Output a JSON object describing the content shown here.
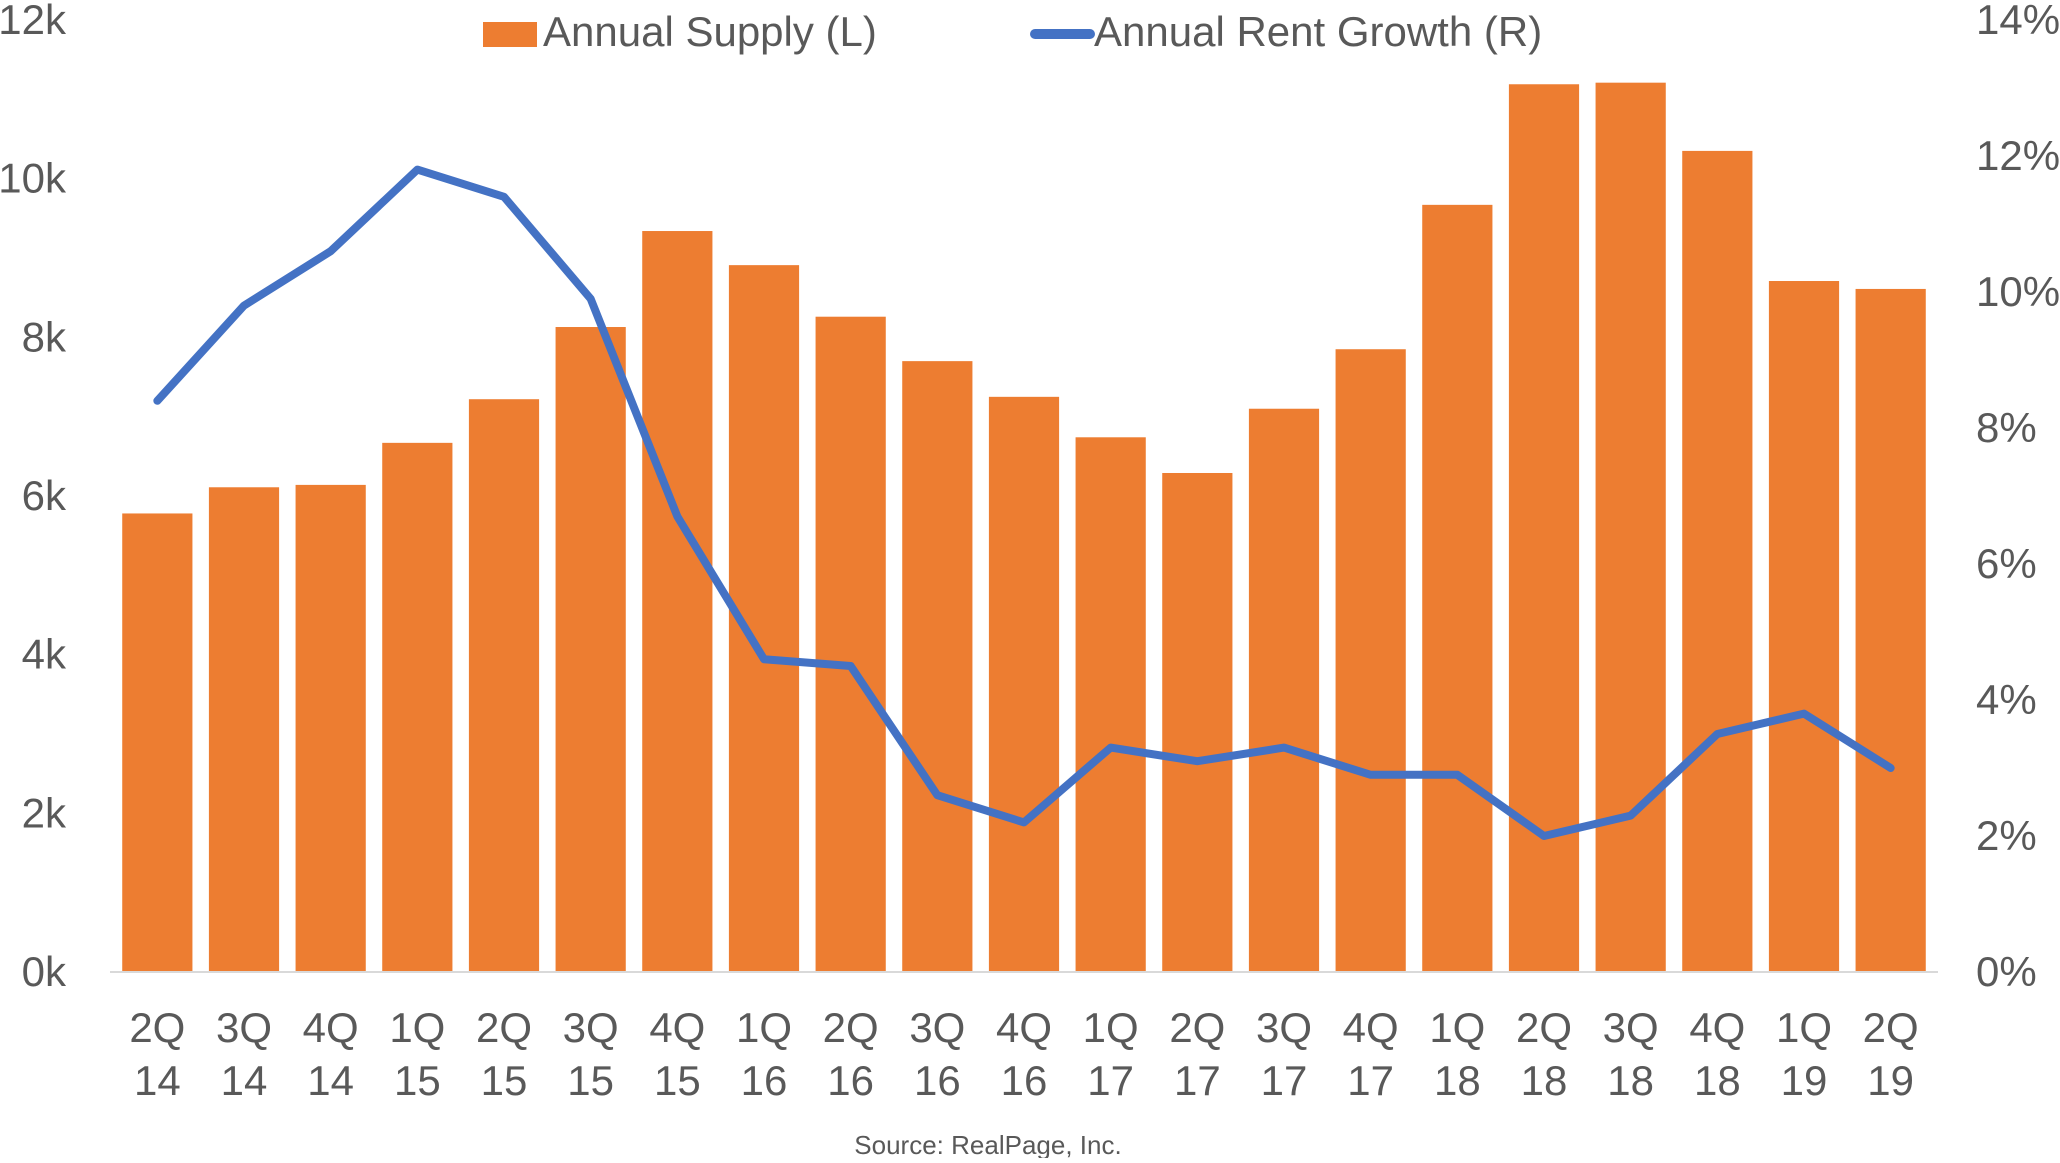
{
  "chart_data": {
    "type": "bar+line",
    "categories": [
      "2Q 14",
      "3Q 14",
      "4Q 14",
      "1Q 15",
      "2Q 15",
      "3Q 15",
      "4Q 15",
      "1Q 16",
      "2Q 16",
      "3Q 16",
      "4Q 16",
      "1Q 17",
      "2Q 17",
      "3Q 17",
      "4Q 17",
      "1Q 18",
      "2Q 18",
      "3Q 18",
      "4Q 18",
      "1Q 19",
      "2Q 19"
    ],
    "series": [
      {
        "name": "Annual Supply (L)",
        "type": "bar",
        "axis": "left",
        "color": "#ED7D31",
        "values": [
          5780,
          6110,
          6140,
          6670,
          7220,
          8130,
          9340,
          8910,
          8260,
          7700,
          7250,
          6740,
          6290,
          7100,
          7850,
          9670,
          11190,
          11210,
          10350,
          8710,
          8610
        ]
      },
      {
        "name": "Annual Rent Growth (R)",
        "type": "line",
        "axis": "right",
        "color": "#4472C4",
        "values": [
          8.4,
          9.8,
          10.6,
          11.8,
          11.4,
          9.9,
          6.7,
          4.6,
          4.5,
          2.6,
          2.2,
          3.3,
          3.1,
          3.3,
          2.9,
          2.9,
          2.0,
          2.3,
          3.5,
          3.8,
          3.0
        ]
      }
    ],
    "left_axis": {
      "ylim": [
        0,
        12000
      ],
      "ticks": [
        "0k",
        "2k",
        "4k",
        "6k",
        "8k",
        "10k",
        "12k"
      ]
    },
    "right_axis": {
      "ylim": [
        0,
        14
      ],
      "ticks": [
        "0%",
        "2%",
        "4%",
        "6%",
        "8%",
        "10%",
        "12%",
        "14%"
      ]
    },
    "legend_position": "top",
    "grid": false,
    "source": "Source: RealPage, Inc."
  }
}
